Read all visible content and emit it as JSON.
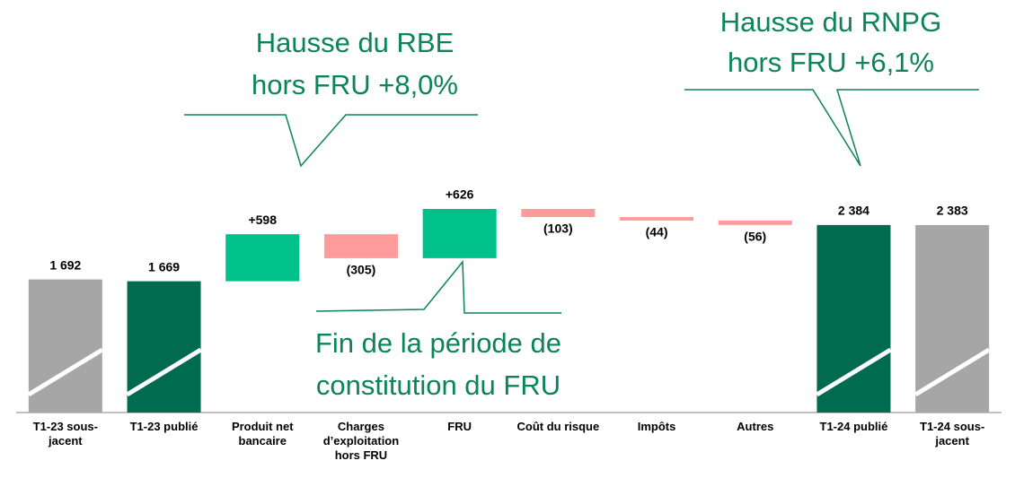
{
  "chart_data": {
    "type": "waterfall",
    "categories": [
      "T1-23 sous-jacent",
      "T1-23 publié",
      "Produit net bancaire",
      "Charges d’exploitation hors FRU",
      "FRU",
      "Coût du risque",
      "Impôts",
      "Autres",
      "T1-24 publié",
      "T1-24 sous-jacent"
    ],
    "values": [
      1692,
      1669,
      598,
      -305,
      626,
      -103,
      -44,
      -56,
      2384,
      2383
    ],
    "value_labels": [
      "1 692",
      "1 669",
      "+598",
      "(305)",
      "+626",
      "(103)",
      "(44)",
      "(56)",
      "2 384",
      "2 383"
    ],
    "measure": [
      "absolute",
      "absolute",
      "relative",
      "relative",
      "relative",
      "relative",
      "relative",
      "relative",
      "absolute",
      "absolute"
    ],
    "colors": [
      "#a6a6a6",
      "#006b4f",
      "#00c08b",
      "#ff9b9b",
      "#00c08b",
      "#ff9b9b",
      "#ff9b9b",
      "#ff9b9b",
      "#006b4f",
      "#a6a6a6"
    ],
    "annotations": [
      {
        "lines": [
          "Hausse du RBE",
          "hors FRU +8,0%"
        ]
      },
      {
        "lines": [
          "Hausse du RNPG",
          "hors FRU +6,1%"
        ]
      },
      {
        "lines": [
          "Fin de la période de",
          "constitution du FRU"
        ]
      }
    ]
  }
}
